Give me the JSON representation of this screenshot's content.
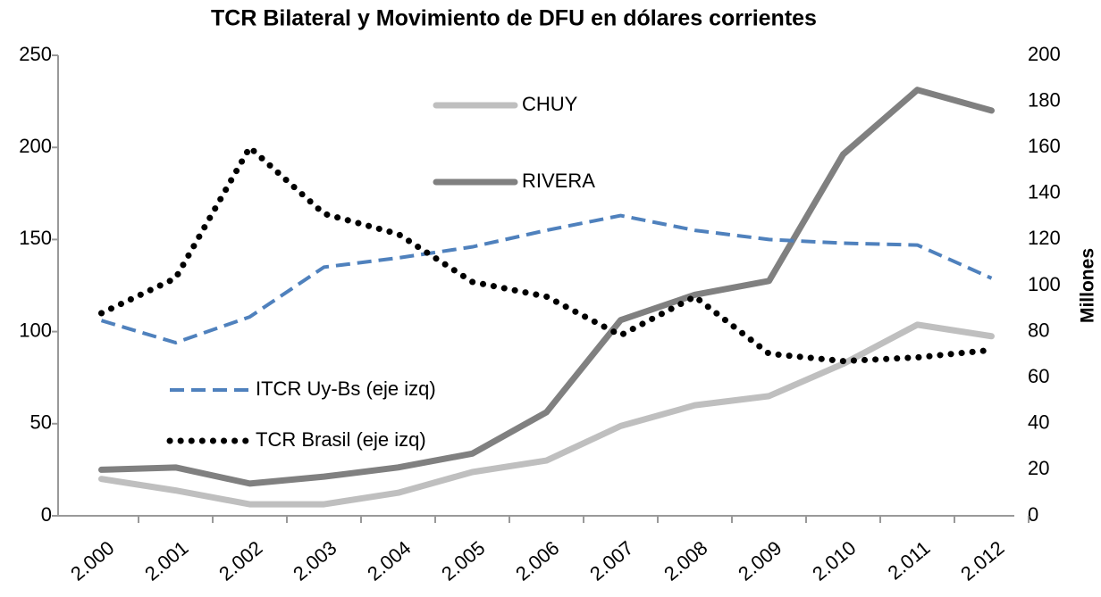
{
  "chart_data": {
    "type": "line",
    "title": "TCR Bilateral y Movimiento de DFU en dólares corrientes",
    "y2label": "Millones",
    "categories": [
      "2.000",
      "2.001",
      "2.002",
      "2.003",
      "2.004",
      "2.005",
      "2.006",
      "2.007",
      "2.008",
      "2.009",
      "2.010",
      "2.011",
      "2.012"
    ],
    "series": [
      {
        "name": "CHUY",
        "color": "#bfbfbf",
        "linestyle": "solid",
        "axis": "y2",
        "values": [
          16,
          11,
          5,
          5,
          10,
          19,
          24,
          39,
          48,
          52,
          66,
          83,
          78
        ]
      },
      {
        "name": "RIVERA",
        "color": "#808080",
        "linestyle": "solid",
        "axis": "y2",
        "values": [
          20,
          21,
          14,
          17,
          21,
          27,
          45,
          85,
          96,
          102,
          157,
          185,
          176
        ]
      },
      {
        "name": "ITCR Uy-Bs (eje izq)",
        "color": "#4f81bd",
        "linestyle": "dashed",
        "values": [
          106,
          94,
          108,
          135,
          140,
          146,
          155,
          163,
          155,
          150,
          148,
          147,
          129
        ]
      },
      {
        "name": "TCR Brasil (eje izq)",
        "color": "#000000",
        "linestyle": "dotted",
        "values": [
          110,
          129,
          200,
          164,
          153,
          127,
          119,
          98,
          119,
          88,
          84,
          86,
          90
        ]
      }
    ],
    "ylim": [
      0,
      250
    ],
    "yticks": [
      0,
      50,
      100,
      150,
      200,
      250
    ],
    "y2lim": [
      0,
      200
    ],
    "y2ticks": [
      0,
      20,
      40,
      60,
      80,
      100,
      120,
      140,
      160,
      180,
      200
    ]
  }
}
